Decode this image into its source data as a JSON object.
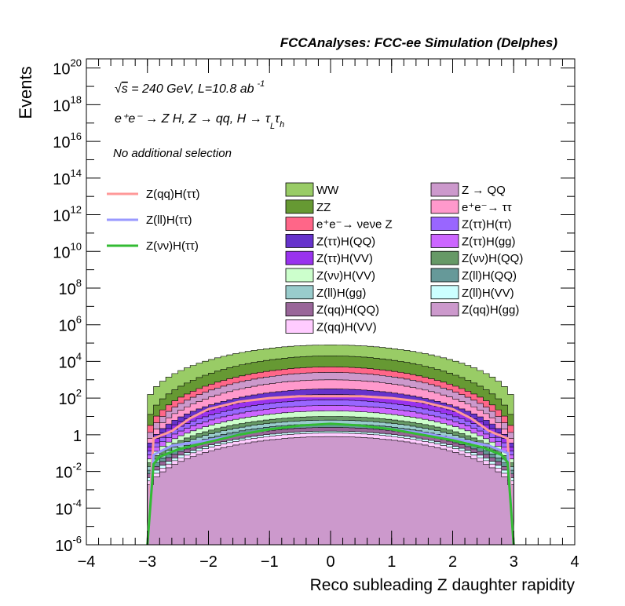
{
  "chart_data": {
    "type": "area",
    "header": "FCCAnalyses: FCC-ee Simulation (Delphes)",
    "ylabel": "Events",
    "xlabel": "Reco subleading Z daughter rapidity",
    "annotations": {
      "energy_prefix": "s",
      "energy": " = 240 GeV, L=10.8 ab",
      "lumi_exp": "-1",
      "process_line": "e⁺e⁻ → Z H, Z → qq, H → τ",
      "tau_sub_1": "L",
      "tau_char": "τ",
      "tau_sub_2": "h",
      "selection": "No additional selection"
    },
    "xlim": [
      -4,
      4
    ],
    "ylim_log10": [
      -6,
      20.5
    ],
    "log_y": true,
    "x_ticks": [
      "−4",
      "−3",
      "−2",
      "−1",
      "0",
      "1",
      "2",
      "3",
      "4"
    ],
    "y_ticks": [
      {
        "base": "10",
        "exp": "20"
      },
      {
        "base": "10",
        "exp": "18"
      },
      {
        "base": "10",
        "exp": "16"
      },
      {
        "base": "10",
        "exp": "14"
      },
      {
        "base": "10",
        "exp": "12"
      },
      {
        "base": "10",
        "exp": "10"
      },
      {
        "base": "10",
        "exp": "8"
      },
      {
        "base": "10",
        "exp": "6"
      },
      {
        "base": "10",
        "exp": "4"
      },
      {
        "base": "10",
        "exp": "2"
      },
      {
        "base": "1",
        "exp": ""
      },
      {
        "base": "10",
        "exp": "-2"
      },
      {
        "base": "10",
        "exp": "-4"
      },
      {
        "base": "10",
        "exp": "-6"
      }
    ],
    "bin_range": [
      -3.0,
      3.0
    ],
    "stacked_series": [
      {
        "name": "WW",
        "color": "#99cc66",
        "peak_log10": 4.9,
        "edge_log10": 1.6
      },
      {
        "name": "ZZ",
        "color": "#669933",
        "peak_log10": 4.3,
        "edge_log10": 0.4
      },
      {
        "name": "e⁺e⁻→ νeνe Z",
        "color": "#ff6688",
        "peak_log10": 3.7,
        "edge_log10": -0.2
      },
      {
        "name": "Z → QQ",
        "color": "#cc99cc",
        "peak_log10": 3.4,
        "edge_log10": -0.6
      },
      {
        "name": "e⁺e⁻→ ττ",
        "color": "#ff99cc",
        "peak_log10": 3.0,
        "edge_log10": -0.9
      },
      {
        "name": "Z(ττ)H(QQ)",
        "color": "#6633cc",
        "peak_log10": 2.5,
        "edge_log10": -1.1
      },
      {
        "name": "Z(ττ)H(VV)",
        "color": "#9933ee",
        "peak_log10": 2.2,
        "edge_log10": -1.3
      },
      {
        "name": "Z(ττ)H(ττ)",
        "color": "#9966ff",
        "peak_log10": 1.9,
        "edge_log10": -1.5
      },
      {
        "name": "Z(ττ)H(gg)",
        "color": "#cc66ff",
        "peak_log10": 1.6,
        "edge_log10": -1.7
      },
      {
        "name": "Z(νν)H(VV)",
        "color": "#ccffcc",
        "peak_log10": 1.3,
        "edge_log10": -1.9
      },
      {
        "name": "Z(νν)H(QQ)",
        "color": "#669966",
        "peak_log10": 1.0,
        "edge_log10": -2.1
      },
      {
        "name": "Z(ll)H(gg)",
        "color": "#99cccc",
        "peak_log10": 0.8,
        "edge_log10": -2.3
      },
      {
        "name": "Z(ll)H(QQ)",
        "color": "#669999",
        "peak_log10": 0.6,
        "edge_log10": -2.5
      },
      {
        "name": "Z(qq)H(QQ)",
        "color": "#996699",
        "peak_log10": 0.4,
        "edge_log10": -2.7
      },
      {
        "name": "Z(ll)H(VV)",
        "color": "#ccffff",
        "peak_log10": 0.2,
        "edge_log10": -2.9
      },
      {
        "name": "Z(qq)H(VV)",
        "color": "#ffccff",
        "peak_log10": 0.1,
        "edge_log10": -3.1
      },
      {
        "name": "Z(qq)H(gg)",
        "color": "#cc99cc",
        "peak_log10": -0.1,
        "edge_log10": -3.3
      }
    ],
    "signal_lines": [
      {
        "name": "Z(qq)H(ττ)",
        "color": "#ff9999",
        "points": [
          [
            -3.0,
            -6
          ],
          [
            -2.9,
            -0.2
          ],
          [
            -2.6,
            0.2
          ],
          [
            -2.3,
            0.9
          ],
          [
            -2.0,
            1.4
          ],
          [
            -1.5,
            1.8
          ],
          [
            -1.0,
            2.0
          ],
          [
            -0.5,
            2.1
          ],
          [
            0,
            2.1
          ],
          [
            0.5,
            2.1
          ],
          [
            1.0,
            2.0
          ],
          [
            1.5,
            1.8
          ],
          [
            2.0,
            1.4
          ],
          [
            2.3,
            0.9
          ],
          [
            2.6,
            0.2
          ],
          [
            2.9,
            -0.2
          ],
          [
            3.0,
            -6
          ]
        ]
      },
      {
        "name": "Z(ll)H(ττ)",
        "color": "#9999ff",
        "points": [
          [
            -3.0,
            -6
          ],
          [
            -2.9,
            -1.1
          ],
          [
            -2.6,
            -0.6
          ],
          [
            -2.0,
            -0.3
          ],
          [
            -1.5,
            0.0
          ],
          [
            -1.0,
            0.3
          ],
          [
            -0.5,
            0.5
          ],
          [
            0,
            0.6
          ],
          [
            0.5,
            0.5
          ],
          [
            1.0,
            0.3
          ],
          [
            1.5,
            0.1
          ],
          [
            2.0,
            -0.2
          ],
          [
            2.6,
            -0.6
          ],
          [
            2.9,
            -1.0
          ],
          [
            3.0,
            -6
          ]
        ]
      },
      {
        "name": "Z(νν)H(ττ)",
        "color": "#33bb33",
        "points": [
          [
            -3.0,
            -6
          ],
          [
            -2.9,
            -1.6
          ],
          [
            -2.8,
            -1.2
          ],
          [
            -2.5,
            -0.8
          ],
          [
            -2.0,
            -0.4
          ],
          [
            -1.5,
            0.0
          ],
          [
            -1.0,
            0.3
          ],
          [
            -0.5,
            0.5
          ],
          [
            0,
            0.6
          ],
          [
            0.5,
            0.5
          ],
          [
            1.0,
            0.3
          ],
          [
            1.5,
            0.0
          ],
          [
            2.0,
            -0.3
          ],
          [
            2.5,
            -0.7
          ],
          [
            2.8,
            -1.1
          ],
          [
            2.9,
            -1.5
          ],
          [
            3.0,
            -6
          ]
        ]
      }
    ],
    "signal_legend": [
      "Z(qq)H(ττ)",
      "Z(ll)H(ττ)",
      "Z(νν)H(ττ)"
    ],
    "legend_col1": [
      "WW",
      "ZZ",
      "e⁺e⁻→ νeνe Z",
      "Z(ττ)H(QQ)",
      "Z(ττ)H(VV)",
      "Z(νν)H(VV)",
      "Z(ll)H(gg)",
      "Z(qq)H(QQ)",
      "Z(qq)H(VV)"
    ],
    "legend_col2": [
      "Z → QQ",
      "e⁺e⁻→ ττ",
      "Z(ττ)H(ττ)",
      "Z(ττ)H(gg)",
      "Z(νν)H(QQ)",
      "Z(ll)H(QQ)",
      "Z(ll)H(VV)",
      "Z(qq)H(gg)"
    ]
  }
}
